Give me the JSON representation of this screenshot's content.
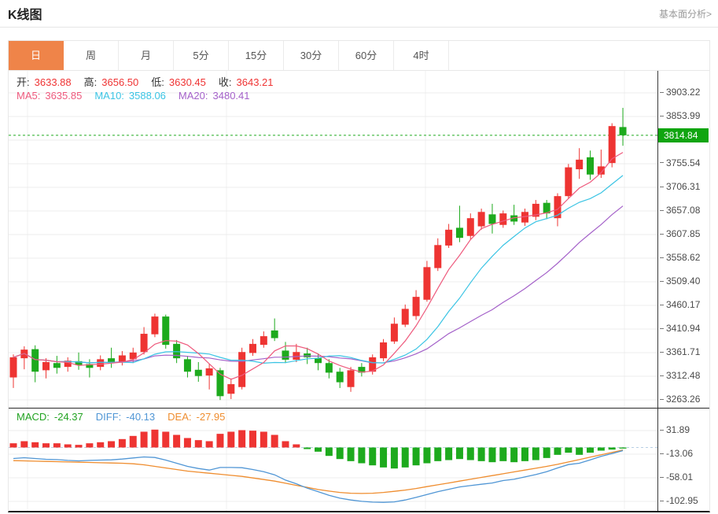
{
  "header": {
    "title": "K线图",
    "link": "基本面分析>"
  },
  "tabs": {
    "items": [
      "日",
      "周",
      "月",
      "5分",
      "15分",
      "30分",
      "60分",
      "4时"
    ],
    "active": 0
  },
  "info": {
    "open_label": "开:",
    "open": "3633.88",
    "high_label": "高:",
    "high": "3656.50",
    "low_label": "低:",
    "low": "3630.45",
    "close_label": "收:",
    "close": "3643.21"
  },
  "ma_info": {
    "ma5_label": "MA5:",
    "ma5": "3635.85",
    "ma10_label": "MA10:",
    "ma10": "3588.06",
    "ma20_label": "MA20:",
    "ma20": "3480.41"
  },
  "macd_info": {
    "macd_label": "MACD:",
    "macd": "-24.37",
    "diff_label": "DIFF:",
    "diff": "-40.13",
    "dea_label": "DEA:",
    "dea": "-27.95"
  },
  "axis": {
    "price_ticks": [
      "3903.22",
      "3853.99",
      "3755.54",
      "3706.31",
      "3657.08",
      "3607.85",
      "3558.62",
      "3509.40",
      "3460.17",
      "3410.94",
      "3361.71",
      "3312.48",
      "3263.26"
    ],
    "price_tick_top": 3903.22,
    "price_tick_step": 49.2269,
    "current_price_label": "3814.84",
    "macd_ticks": [
      "31.89",
      "-13.06",
      "-58.01",
      "-102.95"
    ]
  },
  "colors": {
    "up": "#ee3432",
    "down": "#1daa1d",
    "ma5": "#ee5a7d",
    "ma10": "#3bc4e4",
    "ma20": "#a461c9",
    "diff": "#5096d5",
    "dea": "#ef8d2f",
    "tab_active": "#ef8449",
    "price_tag_bg": "#10a510",
    "dotted_line": "#22ab22",
    "grid": "#ececec",
    "grid_vertical": "#f1f1f1"
  },
  "chart_data": {
    "type": "candlestick",
    "title": "K线图",
    "panels": [
      "price",
      "MACD"
    ],
    "interval_selected": "日",
    "price_axis_range": [
      3246.9,
      3949.2
    ],
    "macd_axis_range": [
      -122,
      74
    ],
    "grid": true,
    "current_price": 3814.84,
    "ma_periods": [
      5,
      10,
      20
    ],
    "candles": {
      "open": [
        3310,
        3350,
        3369,
        3325,
        3340,
        3332,
        3344,
        3338,
        3332,
        3350,
        3342,
        3348,
        3363,
        3400,
        3437,
        3380,
        3348,
        3326,
        3314,
        3325,
        3276,
        3290,
        3361,
        3378,
        3408,
        3366,
        3347,
        3360,
        3350,
        3340,
        3322,
        3290,
        3332,
        3322,
        3350,
        3385,
        3420,
        3438,
        3472,
        3538,
        3585,
        3622,
        3605,
        3625,
        3650,
        3628,
        3648,
        3633,
        3645,
        3674,
        3642,
        3688,
        3744,
        3769,
        3733,
        3757,
        3832
      ],
      "close": [
        3352,
        3368,
        3322,
        3342,
        3330,
        3345,
        3336,
        3330,
        3348,
        3340,
        3356,
        3362,
        3401,
        3437,
        3378,
        3350,
        3322,
        3313,
        3329,
        3271,
        3296,
        3363,
        3380,
        3396,
        3392,
        3347,
        3363,
        3352,
        3340,
        3320,
        3300,
        3325,
        3320,
        3352,
        3383,
        3422,
        3453,
        3478,
        3540,
        3586,
        3618,
        3601,
        3642,
        3655,
        3630,
        3652,
        3635,
        3655,
        3672,
        3652,
        3688,
        3748,
        3764,
        3733,
        3750,
        3834,
        3814.84
      ],
      "high": [
        3358,
        3375,
        3377,
        3350,
        3355,
        3352,
        3362,
        3348,
        3356,
        3372,
        3365,
        3372,
        3415,
        3443,
        3441,
        3388,
        3355,
        3342,
        3338,
        3330,
        3308,
        3372,
        3390,
        3406,
        3433,
        3384,
        3380,
        3372,
        3360,
        3348,
        3330,
        3332,
        3340,
        3358,
        3390,
        3435,
        3462,
        3492,
        3553,
        3600,
        3630,
        3668,
        3652,
        3662,
        3672,
        3658,
        3670,
        3662,
        3680,
        3680,
        3694,
        3755,
        3788,
        3783,
        3785,
        3840,
        3872
      ],
      "low": [
        3288,
        3327,
        3300,
        3308,
        3318,
        3322,
        3326,
        3310,
        3325,
        3330,
        3335,
        3340,
        3358,
        3394,
        3370,
        3340,
        3310,
        3301,
        3285,
        3263,
        3265,
        3285,
        3355,
        3372,
        3386,
        3340,
        3342,
        3338,
        3325,
        3308,
        3288,
        3280,
        3312,
        3316,
        3344,
        3380,
        3415,
        3430,
        3468,
        3532,
        3580,
        3592,
        3598,
        3618,
        3610,
        3622,
        3628,
        3626,
        3638,
        3640,
        3625,
        3682,
        3724,
        3722,
        3726,
        3748,
        3793
      ]
    },
    "macd": {
      "histogram": [
        8,
        12,
        10,
        8,
        8,
        6,
        5,
        8,
        10,
        12,
        16,
        22,
        30,
        34,
        30,
        24,
        18,
        14,
        12,
        26,
        30,
        33,
        32,
        30,
        24,
        12,
        6,
        -3,
        -8,
        -16,
        -22,
        -26,
        -30,
        -34,
        -38,
        -40,
        -38,
        -34,
        -30,
        -26,
        -24,
        -22,
        -24,
        -26,
        -28,
        -26,
        -28,
        -26,
        -24,
        -20,
        -14,
        -10,
        -14,
        -10,
        -6,
        -4,
        -2
      ],
      "diff": [
        -21,
        -19.5,
        -21,
        -22.5,
        -23,
        -24.5,
        -25.5,
        -24.5,
        -24,
        -23.5,
        -22,
        -20,
        -18,
        -19,
        -24,
        -30,
        -36,
        -40,
        -43,
        -38,
        -38,
        -38.5,
        -42,
        -46,
        -52,
        -62,
        -69,
        -77.5,
        -84,
        -91,
        -96.5,
        -100,
        -102.5,
        -104,
        -104.5,
        -103.5,
        -100,
        -95,
        -89.5,
        -84,
        -79.5,
        -75,
        -72.5,
        -70,
        -67.5,
        -63,
        -60.5,
        -56,
        -51.5,
        -46,
        -39,
        -32.5,
        -30,
        -23.5,
        -17,
        -11.5,
        -6
      ],
      "dea": [
        -25,
        -25.5,
        -26,
        -26.5,
        -27,
        -27.5,
        -28,
        -28.5,
        -29,
        -29.5,
        -30,
        -31,
        -33,
        -36,
        -39,
        -42,
        -45,
        -47,
        -49,
        -51,
        -53,
        -55,
        -58,
        -61,
        -64,
        -68,
        -72,
        -76,
        -80,
        -83,
        -85.5,
        -87,
        -87.5,
        -87,
        -85.5,
        -83.5,
        -81,
        -78,
        -74.5,
        -71,
        -67.5,
        -64,
        -60.5,
        -57,
        -53.5,
        -50,
        -46.5,
        -43,
        -39.5,
        -36,
        -32,
        -27.5,
        -23,
        -18.5,
        -14,
        -9.5,
        -5
      ]
    }
  }
}
